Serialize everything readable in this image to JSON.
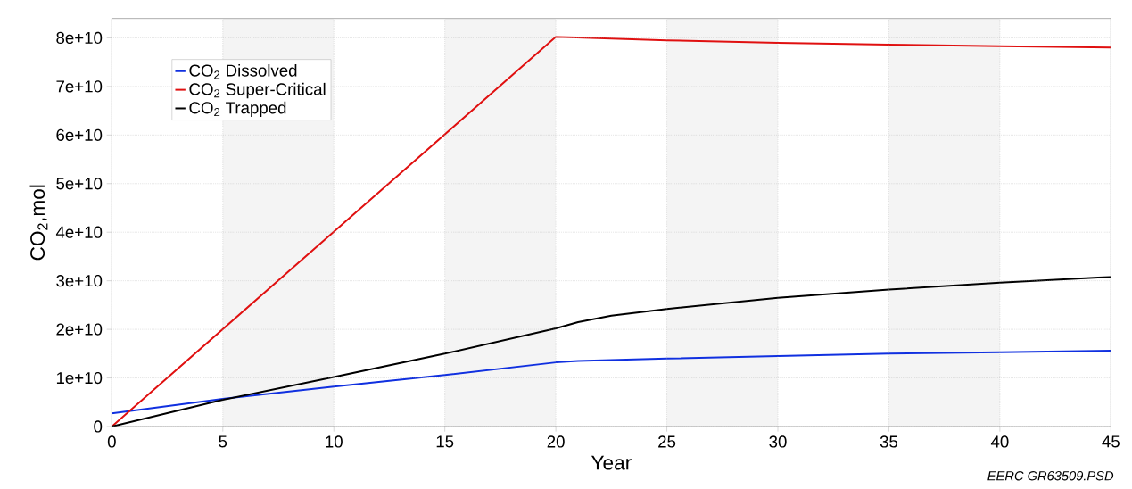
{
  "chart_data": {
    "type": "line",
    "xlabel": "Year",
    "ylabel": "CO$_{2}$,mol",
    "xlim": [
      0,
      45
    ],
    "xticks": [
      0,
      5,
      10,
      15,
      20,
      25,
      30,
      35,
      40,
      45
    ],
    "ylim": [
      0,
      84000000000
    ],
    "yticks": [
      {
        "value": 0,
        "label": "0"
      },
      {
        "value": 10000000000,
        "label": "1e+10"
      },
      {
        "value": 20000000000,
        "label": "2e+10"
      },
      {
        "value": 30000000000,
        "label": "3e+10"
      },
      {
        "value": 40000000000,
        "label": "4e+10"
      },
      {
        "value": 50000000000,
        "label": "5e+10"
      },
      {
        "value": 60000000000,
        "label": "6e+10"
      },
      {
        "value": 70000000000,
        "label": "7e+10"
      },
      {
        "value": 80000000000,
        "label": "8e+10"
      }
    ],
    "grid": true,
    "legend": "top left",
    "line_style": "solid",
    "bands": [
      {
        "axis": "x",
        "from": 5,
        "to": 10,
        "color": "#f4f4f4"
      },
      {
        "axis": "x",
        "from": 15,
        "to": 20,
        "color": "#f4f4f4"
      },
      {
        "axis": "x",
        "from": 25,
        "to": 30,
        "color": "#f4f4f4"
      },
      {
        "axis": "x",
        "from": 35,
        "to": 40,
        "color": "#f4f4f4"
      }
    ],
    "annotations": [
      "EERC GR63509.PSD"
    ],
    "series": [
      {
        "name": "CO$_{2}$ Dissolved",
        "color": "#1030e0",
        "x": [
          0,
          5,
          10,
          15,
          20,
          21,
          25,
          30,
          35,
          40,
          45
        ],
        "values": [
          2700000000,
          5700000000,
          8200000000,
          10600000000,
          13200000000,
          13500000000,
          14000000000,
          14500000000,
          15000000000,
          15300000000,
          15600000000
        ]
      },
      {
        "name": "CO$_{2}$ Super-Critical",
        "color": "#e01010",
        "x": [
          0,
          20,
          25,
          30,
          35,
          40,
          45
        ],
        "values": [
          0,
          80200000000,
          79500000000,
          79000000000,
          78600000000,
          78300000000,
          78000000000
        ]
      },
      {
        "name": "CO$_{2}$ Trapped",
        "color": "#000000",
        "x": [
          0,
          5,
          10,
          15,
          20,
          21,
          22.5,
          25,
          30,
          35,
          40,
          45
        ],
        "values": [
          0,
          5500000000,
          10200000000,
          15000000000,
          20200000000,
          21500000000,
          22800000000,
          24200000000,
          26500000000,
          28200000000,
          29600000000,
          30800000000
        ]
      }
    ]
  }
}
